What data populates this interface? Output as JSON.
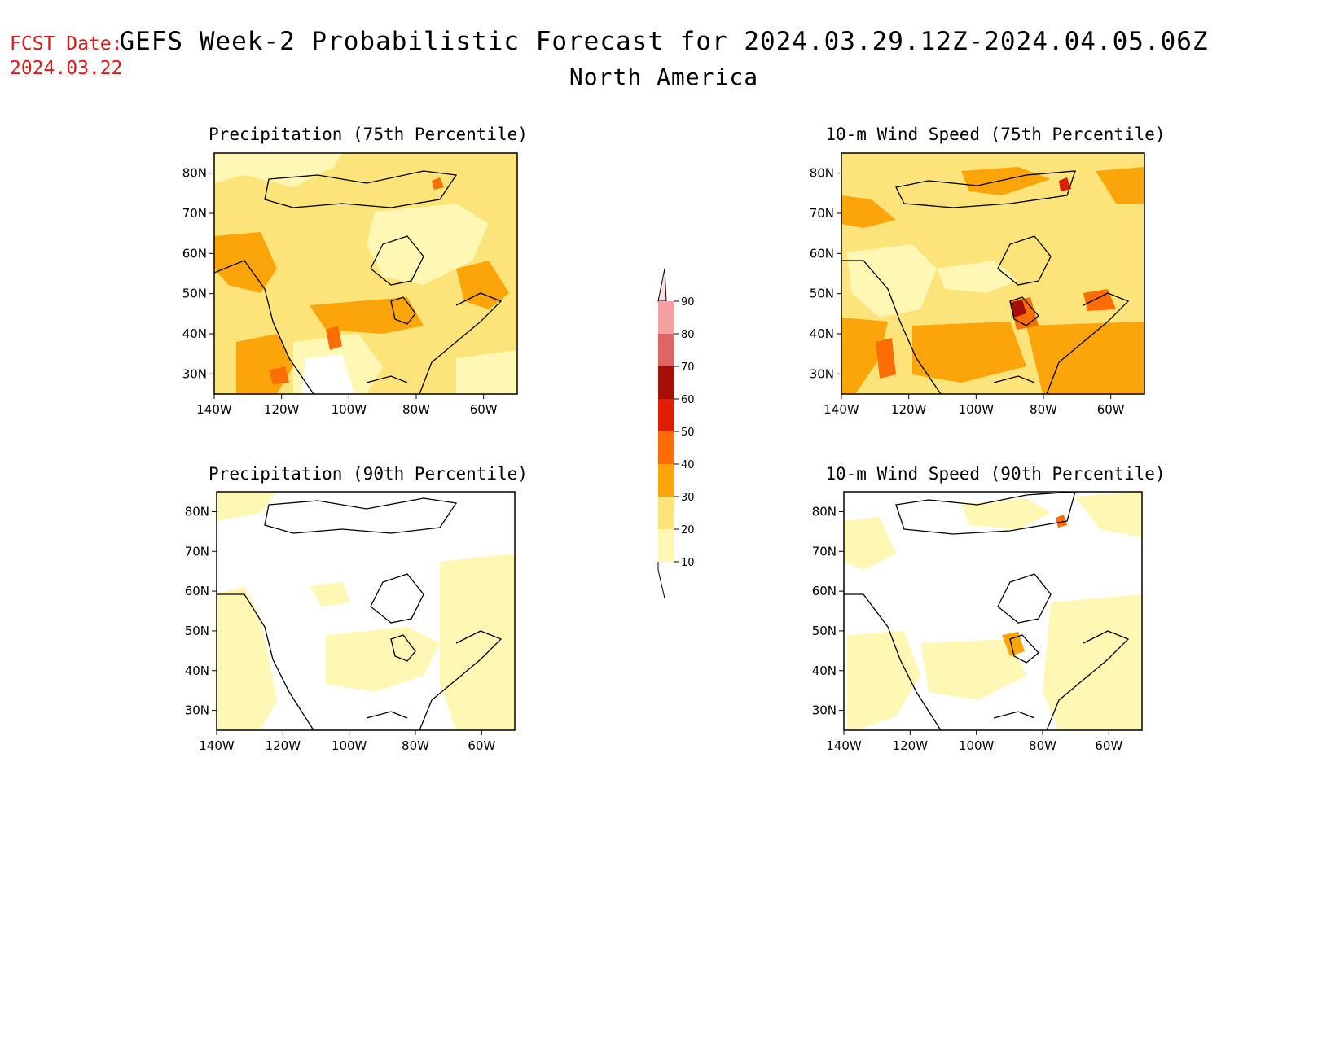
{
  "header": {
    "fcst_label": "FCST Date:",
    "fcst_date": "2024.03.22",
    "title": "GEFS Week-2 Probabilistic Forecast for 2024.03.29.12Z-2024.04.05.06Z",
    "subtitle": "North America"
  },
  "colors": {
    "bin_10_20": "#fff7b3",
    "bin_20_30": "#fde47a",
    "bin_30_40": "#fca50a",
    "bin_40_50": "#fb6d05",
    "bin_50_60": "#e01d05",
    "bin_60_70": "#a50f05",
    "bin_70_80": "#e06464",
    "bin_80_90": "#f2a0a0",
    "bin_90_100": "#fde0e0"
  },
  "colorbar": {
    "ticks": [
      "10",
      "20",
      "30",
      "40",
      "50",
      "60",
      "70",
      "80",
      "90"
    ]
  },
  "axes": {
    "lat_labels": [
      "80N",
      "70N",
      "60N",
      "50N",
      "40N",
      "30N"
    ],
    "lon_labels": [
      "140W",
      "120W",
      "100W",
      "80W",
      "60W"
    ]
  },
  "panels": [
    {
      "title": "Precipitation (75th Percentile)"
    },
    {
      "title": "10-m Wind Speed (75th Percentile)"
    },
    {
      "title": "Precipitation (90th Percentile)"
    },
    {
      "title": "10-m Wind Speed (90th Percentile)"
    }
  ]
}
